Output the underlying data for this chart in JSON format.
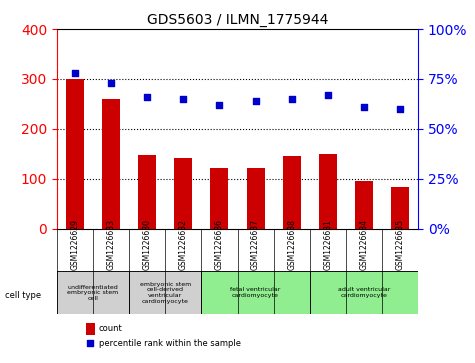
{
  "title": "GDS5603 / ILMN_1775944",
  "samples": [
    "GSM1226629",
    "GSM1226633",
    "GSM1226630",
    "GSM1226632",
    "GSM1226636",
    "GSM1226637",
    "GSM1226638",
    "GSM1226631",
    "GSM1226634",
    "GSM1226635"
  ],
  "counts": [
    300,
    260,
    148,
    142,
    122,
    122,
    145,
    150,
    95,
    83
  ],
  "percentiles": [
    78,
    73,
    66,
    65,
    62,
    64,
    65,
    67,
    61,
    60
  ],
  "ylim_left": [
    0,
    400
  ],
  "ylim_right": [
    0,
    100
  ],
  "yticks_left": [
    0,
    100,
    200,
    300,
    400
  ],
  "yticks_right": [
    0,
    25,
    50,
    75,
    100
  ],
  "cell_types": [
    {
      "label": "undifferentiated\nembryonic stem\ncell",
      "span": [
        0,
        2
      ],
      "color": "#d0d0d0"
    },
    {
      "label": "embryonic stem\ncell-derived\nventricular\ncardiomyocyte",
      "span": [
        2,
        4
      ],
      "color": "#d0d0d0"
    },
    {
      "label": "fetal ventricular\ncardiomyocyte",
      "span": [
        4,
        7
      ],
      "color": "#90ee90"
    },
    {
      "label": "adult ventricular\ncardiomyocyte",
      "span": [
        7,
        10
      ],
      "color": "#90ee90"
    }
  ],
  "bar_color": "#cc0000",
  "dot_color": "#0000cc",
  "bar_width": 0.5,
  "legend_count_color": "#cc0000",
  "legend_dot_color": "#0000cc"
}
